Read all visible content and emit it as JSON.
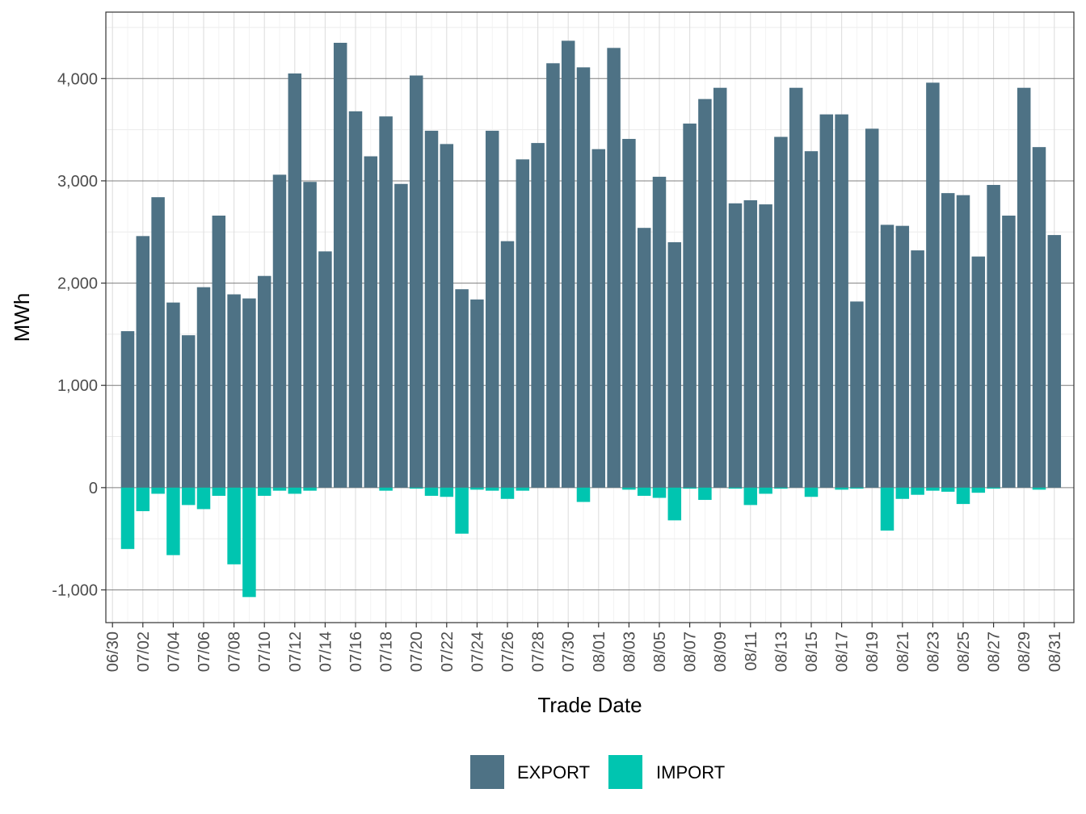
{
  "chart_data": {
    "type": "bar",
    "stacked": true,
    "title": "",
    "xlabel": "Trade Date",
    "ylabel": "MWh",
    "ylim": [
      -1320,
      4650
    ],
    "yticks": [
      -1000,
      0,
      1000,
      2000,
      3000,
      4000
    ],
    "ytick_labels": [
      "-1,000",
      "0",
      "1,000",
      "2,000",
      "3,000",
      "4,000"
    ],
    "xtick_labels": [
      "06/30",
      "07/02",
      "07/04",
      "07/06",
      "07/08",
      "07/10",
      "07/12",
      "07/14",
      "07/16",
      "07/18",
      "07/20",
      "07/22",
      "07/24",
      "07/26",
      "07/28",
      "07/30",
      "08/01",
      "08/03",
      "08/05",
      "08/07",
      "08/09",
      "08/11",
      "08/13",
      "08/15",
      "08/17",
      "08/19",
      "08/21",
      "08/23",
      "08/25",
      "08/27",
      "08/29",
      "08/31"
    ],
    "grid": true,
    "legend_position": "bottom",
    "categories": [
      "07/01",
      "07/02",
      "07/03",
      "07/04",
      "07/05",
      "07/06",
      "07/07",
      "07/08",
      "07/09",
      "07/10",
      "07/11",
      "07/12",
      "07/13",
      "07/14",
      "07/15",
      "07/16",
      "07/17",
      "07/18",
      "07/19",
      "07/20",
      "07/21",
      "07/22",
      "07/23",
      "07/24",
      "07/25",
      "07/26",
      "07/27",
      "07/28",
      "07/29",
      "07/30",
      "07/31",
      "08/01",
      "08/02",
      "08/03",
      "08/04",
      "08/05",
      "08/06",
      "08/07",
      "08/08",
      "08/09",
      "08/10",
      "08/11",
      "08/12",
      "08/13",
      "08/14",
      "08/15",
      "08/16",
      "08/17",
      "08/18",
      "08/19",
      "08/20",
      "08/21",
      "08/22",
      "08/23",
      "08/24",
      "08/25",
      "08/26",
      "08/27",
      "08/28",
      "08/29",
      "08/30",
      "08/31"
    ],
    "series": [
      {
        "name": "EXPORT",
        "color": "#4e7285",
        "values": [
          1530,
          2460,
          2840,
          1810,
          1490,
          1960,
          2660,
          1890,
          1850,
          2070,
          3060,
          4050,
          2990,
          2310,
          4350,
          3680,
          3240,
          3630,
          2970,
          4030,
          3490,
          3360,
          1940,
          1840,
          3490,
          2410,
          3210,
          3370,
          4150,
          4370,
          4110,
          3310,
          4300,
          3410,
          2540,
          3040,
          2400,
          3560,
          3800,
          3910,
          2780,
          2810,
          2770,
          3430,
          3910,
          3290,
          3650,
          3650,
          1820,
          3510,
          2570,
          2560,
          2320,
          3960,
          2880,
          2860,
          2260,
          2960,
          2660,
          3910,
          3330,
          2470
        ]
      },
      {
        "name": "IMPORT",
        "color": "#00c5b0",
        "values": [
          -600,
          -230,
          -60,
          -660,
          -170,
          -210,
          -80,
          -750,
          -1070,
          -80,
          -30,
          -60,
          -30,
          0,
          0,
          0,
          0,
          -30,
          0,
          -10,
          -80,
          -90,
          -450,
          -20,
          -30,
          -110,
          -30,
          0,
          0,
          0,
          -140,
          0,
          0,
          -20,
          -80,
          -100,
          -320,
          -10,
          -120,
          0,
          -10,
          -170,
          -60,
          -10,
          0,
          -90,
          0,
          -20,
          -10,
          0,
          -420,
          -110,
          -70,
          -30,
          -40,
          -160,
          -50,
          -10,
          0,
          0,
          -20,
          0
        ]
      }
    ]
  }
}
